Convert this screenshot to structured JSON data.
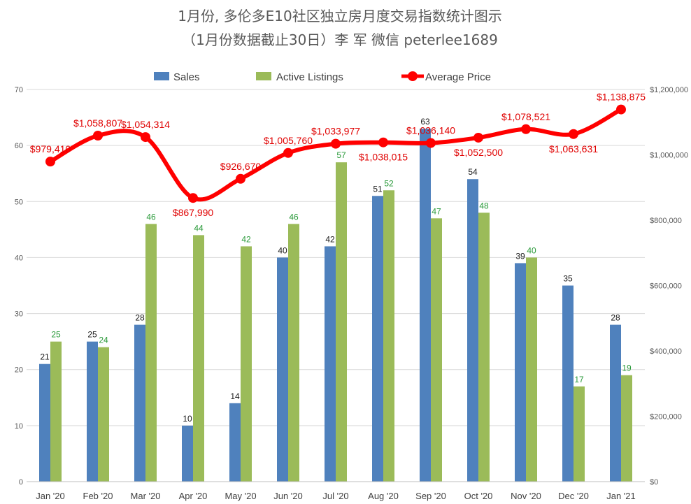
{
  "chart_data": {
    "type": "bar",
    "title": "1月份, 多伦多E10社区独立房月度交易指数统计图示",
    "subtitle": "（1月份数据截止30日）李 军  微信  peterlee1689",
    "categories": [
      "Jan '20",
      "Feb '20",
      "Mar '20",
      "Apr '20",
      "May '20",
      "Jun '20",
      "Jul '20",
      "Aug '20",
      "Sep '20",
      "Oct '20",
      "Nov '20",
      "Dec '20",
      "Jan '21"
    ],
    "series": [
      {
        "name": "Sales",
        "type": "bar",
        "axis": "left",
        "color": "#4f81bd",
        "values": [
          21,
          25,
          28,
          10,
          14,
          40,
          42,
          51,
          63,
          54,
          39,
          35,
          28
        ],
        "labels": [
          "21",
          "25",
          "28",
          "10",
          "14",
          "40",
          "42",
          "51",
          "63",
          "54",
          "39",
          "35",
          "28"
        ]
      },
      {
        "name": "Active Listings",
        "type": "bar",
        "axis": "left",
        "color": "#9bbb59",
        "values": [
          25,
          24,
          46,
          44,
          42,
          46,
          57,
          52,
          47,
          48,
          40,
          17,
          19
        ],
        "labels": [
          "25",
          "24",
          "46",
          "44",
          "42",
          "46",
          "57",
          "52",
          "47",
          "48",
          "40",
          "17",
          "19"
        ]
      },
      {
        "name": "Average Price",
        "type": "line",
        "axis": "right",
        "color": "#ff0000",
        "values": [
          979410,
          1058807,
          1054314,
          867990,
          926670,
          1005760,
          1033977,
          1038015,
          1036140,
          1052500,
          1078521,
          1063631,
          1138875
        ],
        "labels": [
          "$979,410",
          "$1,058,807",
          "$1,054,314",
          "$867,990",
          "$926,670",
          "$1,005,760",
          "$1,033,977",
          "$1,038,015",
          "$1,036,140",
          "$1,052,500",
          "$1,078,521",
          "$1,063,631",
          "$1,138,875"
        ]
      }
    ],
    "ylim_left": [
      0,
      70
    ],
    "yticks_left": [
      "0",
      "10",
      "20",
      "30",
      "40",
      "50",
      "60",
      "70"
    ],
    "ylim_right": [
      0,
      1200000
    ],
    "yticks_right": [
      "$0",
      "$200,000",
      "$400,000",
      "$600,000",
      "$800,000",
      "$1,000,000",
      "$1,200,000"
    ],
    "grid": true,
    "legend": "top-center"
  }
}
